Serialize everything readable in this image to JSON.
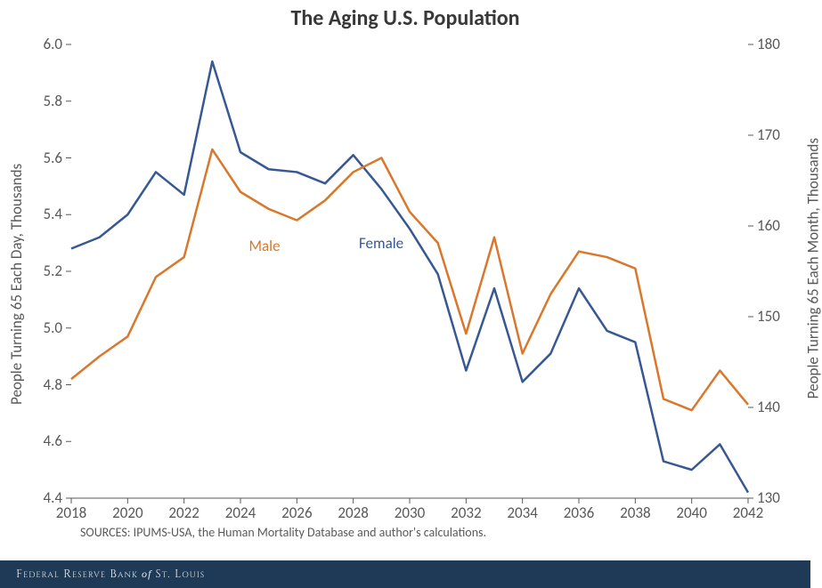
{
  "chart": {
    "type": "line",
    "title": "The Aging U.S. Population",
    "title_fontsize": 24,
    "y_left_label": "People Turning 65 Each Day, Thousands",
    "y_right_label": "People Turning 65 Each Month, Thousands",
    "label_fontsize": 17,
    "tick_fontsize": 17,
    "background_color": "#ffffff",
    "axis_color": "#595959",
    "line_width": 2.5,
    "x": {
      "min": 2018,
      "max": 2042,
      "tick_step": 2,
      "ticks": [
        2018,
        2020,
        2022,
        2024,
        2026,
        2028,
        2030,
        2032,
        2034,
        2036,
        2038,
        2040,
        2042
      ]
    },
    "y_left": {
      "min": 4.4,
      "max": 6.0,
      "tick_step": 0.2,
      "ticks": [
        4.4,
        4.6,
        4.8,
        5.0,
        5.2,
        5.4,
        5.6,
        5.8,
        6.0
      ]
    },
    "y_right": {
      "min": 130,
      "max": 180,
      "tick_step": 10,
      "ticks": [
        130,
        140,
        150,
        160,
        170,
        180
      ]
    },
    "series": [
      {
        "name": "Female",
        "color": "#385894",
        "label_pos": {
          "x": 2028.2,
          "y": 5.3
        },
        "points": [
          [
            2018,
            5.28
          ],
          [
            2019,
            5.32
          ],
          [
            2020,
            5.4
          ],
          [
            2021,
            5.55
          ],
          [
            2022,
            5.47
          ],
          [
            2023,
            5.94
          ],
          [
            2024,
            5.62
          ],
          [
            2025,
            5.56
          ],
          [
            2026,
            5.55
          ],
          [
            2027,
            5.51
          ],
          [
            2028,
            5.61
          ],
          [
            2029,
            5.49
          ],
          [
            2030,
            5.35
          ],
          [
            2031,
            5.19
          ],
          [
            2032,
            4.85
          ],
          [
            2033,
            5.14
          ],
          [
            2034,
            4.81
          ],
          [
            2035,
            4.91
          ],
          [
            2036,
            5.14
          ],
          [
            2037,
            4.99
          ],
          [
            2038,
            4.95
          ],
          [
            2039,
            4.53
          ],
          [
            2040,
            4.5
          ],
          [
            2041,
            4.59
          ],
          [
            2042,
            4.42
          ]
        ]
      },
      {
        "name": "Male",
        "color": "#d9782d",
        "label_pos": {
          "x": 2024.3,
          "y": 5.29
        },
        "points": [
          [
            2018,
            4.82
          ],
          [
            2019,
            4.9
          ],
          [
            2020,
            4.97
          ],
          [
            2021,
            5.18
          ],
          [
            2022,
            5.25
          ],
          [
            2023,
            5.63
          ],
          [
            2024,
            5.48
          ],
          [
            2025,
            5.42
          ],
          [
            2026,
            5.38
          ],
          [
            2027,
            5.45
          ],
          [
            2028,
            5.55
          ],
          [
            2029,
            5.6
          ],
          [
            2030,
            5.41
          ],
          [
            2031,
            5.3
          ],
          [
            2032,
            4.98
          ],
          [
            2033,
            5.32
          ],
          [
            2034,
            4.91
          ],
          [
            2035,
            5.12
          ],
          [
            2036,
            5.27
          ],
          [
            2037,
            5.25
          ],
          [
            2038,
            5.21
          ],
          [
            2039,
            4.75
          ],
          [
            2040,
            4.71
          ],
          [
            2041,
            4.85
          ],
          [
            2042,
            4.73
          ]
        ]
      }
    ],
    "source_note": "SOURCES: IPUMS-USA, the Human Mortality Database and author's calculations.",
    "footer": {
      "pre": "Federal Reserve Bank",
      "of": " of ",
      "post": "St. Louis",
      "background": "#1f3a57",
      "color": "#e8ecef"
    }
  }
}
